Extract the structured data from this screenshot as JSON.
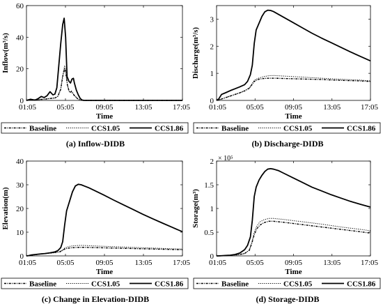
{
  "time_ticks": [
    "01:05",
    "05:05",
    "09:05",
    "13:05",
    "17:05"
  ],
  "legend_labels": [
    "Baseline",
    "CCS1.05",
    "CCS1.86"
  ],
  "chart_data": [
    {
      "type": "line",
      "caption": "(a) Inflow-DIDB",
      "ylabel": "Inflow(m³/s)",
      "xlabel": "Time",
      "xlim": [
        1.0833,
        17.0833
      ],
      "ylim": [
        0,
        60
      ],
      "yticks": [
        0,
        20,
        40,
        60
      ],
      "exponent_label": "",
      "series": [
        {
          "name": "Baseline",
          "style": "dashdot",
          "x": [
            1.08,
            1.5,
            2.0,
            2.5,
            3.0,
            3.5,
            4.0,
            4.3,
            4.6,
            4.8,
            5.0,
            5.1,
            5.3,
            5.5,
            5.7,
            6.0,
            6.3,
            6.5,
            6.8,
            7.0,
            7.5,
            17.08
          ],
          "y": [
            0,
            0.3,
            0.2,
            0.6,
            0.8,
            1.2,
            1.5,
            2.5,
            7,
            15,
            20,
            18,
            9,
            5,
            5.5,
            3,
            1.2,
            0.5,
            0.1,
            0,
            0,
            0
          ]
        },
        {
          "name": "CCS1.05",
          "style": "dotted",
          "x": [
            1.08,
            1.5,
            2.0,
            2.5,
            3.0,
            3.5,
            4.0,
            4.3,
            4.6,
            4.8,
            5.0,
            5.1,
            5.3,
            5.5,
            5.7,
            6.0,
            6.3,
            6.5,
            6.8,
            7.0,
            7.5,
            17.08
          ],
          "y": [
            0,
            0.3,
            0.2,
            0.6,
            0.9,
            1.3,
            1.6,
            2.7,
            7.5,
            16,
            22,
            19.5,
            9.5,
            5.5,
            6,
            3.2,
            1.3,
            0.5,
            0.1,
            0,
            0,
            0
          ]
        },
        {
          "name": "CCS1.86",
          "style": "solid",
          "x": [
            1.08,
            1.5,
            1.8,
            2.0,
            2.3,
            2.6,
            2.9,
            3.2,
            3.5,
            3.8,
            4.0,
            4.2,
            4.4,
            4.6,
            4.8,
            4.95,
            5.1,
            5.25,
            5.45,
            5.6,
            5.75,
            5.9,
            6.0,
            6.2,
            6.4,
            6.6,
            6.8,
            7.0,
            7.5,
            17.08
          ],
          "y": [
            0,
            0.7,
            0.4,
            0.3,
            1.2,
            2.5,
            1.8,
            3.0,
            5.5,
            3.5,
            4.0,
            8,
            22,
            36,
            48,
            52,
            40,
            15,
            12,
            11,
            13.5,
            14,
            11,
            6.5,
            3.5,
            1.2,
            0.2,
            0,
            0,
            0
          ]
        }
      ]
    },
    {
      "type": "line",
      "caption": "(b) Discharge-DIDB",
      "ylabel": "Discharge(m³/s)",
      "xlabel": "Time",
      "xlim": [
        1.0833,
        17.0833
      ],
      "ylim": [
        0,
        3.5
      ],
      "yticks": [
        0,
        1,
        2,
        3
      ],
      "exponent_label": "",
      "series": [
        {
          "name": "Baseline",
          "style": "dashdot",
          "x": [
            1.08,
            1.5,
            2.0,
            2.5,
            3.0,
            3.5,
            4.0,
            4.5,
            4.8,
            5.0,
            5.3,
            5.6,
            6.0,
            6.5,
            7.0,
            8.0,
            10.0,
            12.0,
            14.0,
            16.0,
            17.08
          ],
          "y": [
            0,
            0.04,
            0.1,
            0.16,
            0.22,
            0.28,
            0.35,
            0.45,
            0.6,
            0.7,
            0.76,
            0.79,
            0.81,
            0.82,
            0.82,
            0.81,
            0.79,
            0.77,
            0.74,
            0.72,
            0.7
          ]
        },
        {
          "name": "CCS1.05",
          "style": "dotted",
          "x": [
            1.08,
            1.5,
            2.0,
            2.5,
            3.0,
            3.5,
            4.0,
            4.5,
            4.8,
            5.0,
            5.3,
            5.6,
            6.0,
            6.5,
            7.0,
            8.0,
            10.0,
            12.0,
            14.0,
            16.0,
            17.08
          ],
          "y": [
            0,
            0.04,
            0.1,
            0.16,
            0.22,
            0.28,
            0.36,
            0.47,
            0.63,
            0.74,
            0.8,
            0.84,
            0.88,
            0.91,
            0.92,
            0.9,
            0.86,
            0.82,
            0.78,
            0.75,
            0.72
          ]
        },
        {
          "name": "CCS1.86",
          "style": "solid",
          "x": [
            1.08,
            1.3,
            1.6,
            2.0,
            2.5,
            3.0,
            3.5,
            4.0,
            4.3,
            4.6,
            4.8,
            5.0,
            5.2,
            5.5,
            5.8,
            6.1,
            6.4,
            6.7,
            7.0,
            7.5,
            8.0,
            9.0,
            10.0,
            11.0,
            12.0,
            13.0,
            14.0,
            15.0,
            16.0,
            17.08
          ],
          "y": [
            0,
            0.05,
            0.22,
            0.28,
            0.36,
            0.43,
            0.5,
            0.58,
            0.7,
            0.95,
            1.3,
            2.1,
            2.6,
            2.85,
            3.1,
            3.27,
            3.33,
            3.32,
            3.28,
            3.18,
            3.08,
            2.88,
            2.68,
            2.48,
            2.3,
            2.13,
            1.96,
            1.79,
            1.63,
            1.46
          ]
        }
      ]
    },
    {
      "type": "line",
      "caption": "(c) Change in Elevation-DIDB",
      "ylabel": "Elevation(m)",
      "xlabel": "Time",
      "xlim": [
        1.0833,
        17.0833
      ],
      "ylim": [
        0,
        40
      ],
      "yticks": [
        0,
        10,
        20,
        30,
        40
      ],
      "exponent_label": "",
      "series": [
        {
          "name": "Baseline",
          "style": "dashdot",
          "x": [
            1.08,
            1.5,
            2.0,
            2.5,
            3.0,
            3.5,
            4.0,
            4.5,
            4.8,
            5.0,
            5.3,
            5.6,
            6.0,
            6.5,
            7.0,
            8.0,
            10.0,
            12.0,
            14.0,
            16.0,
            17.08
          ],
          "y": [
            0,
            0.2,
            0.5,
            0.8,
            1.0,
            1.2,
            1.4,
            1.7,
            2.3,
            2.9,
            3.2,
            3.4,
            3.5,
            3.6,
            3.6,
            3.5,
            3.3,
            3.1,
            2.9,
            2.7,
            2.6
          ]
        },
        {
          "name": "CCS1.05",
          "style": "dotted",
          "x": [
            1.08,
            1.5,
            2.0,
            2.5,
            3.0,
            3.5,
            4.0,
            4.5,
            4.8,
            5.0,
            5.3,
            5.6,
            6.0,
            6.5,
            7.0,
            8.0,
            10.0,
            12.0,
            14.0,
            16.0,
            17.08
          ],
          "y": [
            0,
            0.2,
            0.5,
            0.8,
            1.0,
            1.2,
            1.4,
            1.8,
            2.6,
            3.3,
            3.8,
            4.1,
            4.3,
            4.4,
            4.4,
            4.2,
            3.9,
            3.6,
            3.3,
            3.0,
            2.9
          ]
        },
        {
          "name": "CCS1.86",
          "style": "solid",
          "x": [
            1.08,
            1.3,
            1.6,
            2.0,
            2.5,
            3.0,
            3.5,
            4.0,
            4.3,
            4.6,
            4.8,
            5.0,
            5.2,
            5.5,
            5.8,
            6.1,
            6.4,
            6.7,
            7.0,
            7.5,
            8.0,
            9.0,
            10.0,
            11.0,
            12.0,
            13.0,
            14.0,
            15.0,
            16.0,
            17.08
          ],
          "y": [
            0,
            0.1,
            0.4,
            0.6,
            0.8,
            1.0,
            1.3,
            1.7,
            2.2,
            3.5,
            6,
            13,
            19,
            23,
            27,
            29.5,
            30.2,
            30,
            29.5,
            28.7,
            27.7,
            25.7,
            23.6,
            21.6,
            19.6,
            17.6,
            15.7,
            13.9,
            12.1,
            10.2
          ]
        }
      ]
    },
    {
      "type": "line",
      "caption": "(d) Storage-DIDB",
      "ylabel": "Storage(m³)",
      "xlabel": "Time",
      "xlim": [
        1.0833,
        17.0833
      ],
      "ylim": [
        0,
        2
      ],
      "yticks": [
        0,
        0.5,
        1,
        1.5,
        2
      ],
      "exponent_label": "× 10⁵",
      "series": [
        {
          "name": "Baseline",
          "style": "dashdot",
          "x": [
            1.08,
            1.5,
            2.0,
            2.5,
            3.0,
            3.5,
            4.0,
            4.5,
            4.8,
            5.0,
            5.3,
            5.6,
            6.0,
            6.5,
            7.0,
            8.0,
            10.0,
            12.0,
            14.0,
            16.0,
            17.08
          ],
          "y": [
            0,
            0.002,
            0.006,
            0.012,
            0.02,
            0.03,
            0.05,
            0.12,
            0.3,
            0.45,
            0.58,
            0.65,
            0.7,
            0.73,
            0.73,
            0.71,
            0.66,
            0.61,
            0.56,
            0.51,
            0.48
          ]
        },
        {
          "name": "CCS1.05",
          "style": "dotted",
          "x": [
            1.08,
            1.5,
            2.0,
            2.5,
            3.0,
            3.5,
            4.0,
            4.5,
            4.8,
            5.0,
            5.3,
            5.6,
            6.0,
            6.5,
            7.0,
            8.0,
            10.0,
            12.0,
            14.0,
            16.0,
            17.08
          ],
          "y": [
            0,
            0.002,
            0.006,
            0.012,
            0.02,
            0.03,
            0.05,
            0.13,
            0.33,
            0.5,
            0.64,
            0.72,
            0.76,
            0.79,
            0.79,
            0.77,
            0.72,
            0.67,
            0.61,
            0.56,
            0.53
          ]
        },
        {
          "name": "CCS1.86",
          "style": "solid",
          "x": [
            1.08,
            1.3,
            1.6,
            2.0,
            2.5,
            3.0,
            3.5,
            4.0,
            4.3,
            4.6,
            4.8,
            5.0,
            5.2,
            5.5,
            5.8,
            6.1,
            6.4,
            6.7,
            7.0,
            7.5,
            8.0,
            9.0,
            10.0,
            11.0,
            12.0,
            13.0,
            14.0,
            15.0,
            16.0,
            17.08
          ],
          "y": [
            0,
            0.001,
            0.004,
            0.008,
            0.015,
            0.03,
            0.06,
            0.13,
            0.22,
            0.4,
            0.75,
            1.25,
            1.45,
            1.6,
            1.7,
            1.78,
            1.83,
            1.84,
            1.83,
            1.8,
            1.75,
            1.65,
            1.55,
            1.45,
            1.37,
            1.29,
            1.22,
            1.15,
            1.09,
            1.03
          ]
        }
      ]
    }
  ]
}
